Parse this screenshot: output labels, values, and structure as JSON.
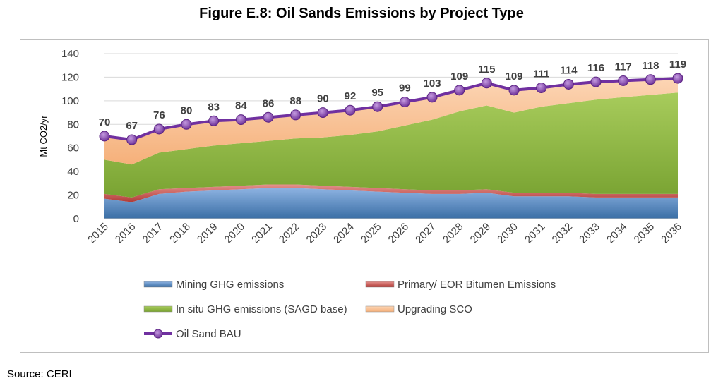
{
  "chart_data": {
    "type": "area",
    "title": "Figure E.8: Oil Sands Emissions by Project Type",
    "ylabel": "Mt CO2/yr",
    "xlabel": "",
    "ylim": [
      0,
      140
    ],
    "yticks": [
      0,
      20,
      40,
      60,
      80,
      100,
      120,
      140
    ],
    "grid": true,
    "legend": "bottom",
    "categories": [
      "2015",
      "2016",
      "2017",
      "2018",
      "2019",
      "2020",
      "2021",
      "2022",
      "2023",
      "2024",
      "2025",
      "2026",
      "2027",
      "2028",
      "2029",
      "2030",
      "2031",
      "2032",
      "2033",
      "2034",
      "2035",
      "2036"
    ],
    "series": [
      {
        "name": "Mining GHG emissions",
        "kind": "stacked-area",
        "color": "#4f81bd",
        "values": [
          17,
          14,
          21,
          23,
          24,
          25,
          26,
          26,
          25,
          24,
          23,
          22,
          21,
          21,
          22,
          19,
          19,
          19,
          18,
          18,
          18,
          18
        ]
      },
      {
        "name": "Primary/ EOR Bitumen Emissions",
        "kind": "stacked-area",
        "color": "#c0504d",
        "values": [
          4,
          4,
          4,
          3,
          3,
          3,
          3,
          3,
          3,
          3,
          3,
          3,
          3,
          3,
          3,
          3,
          3,
          3,
          3,
          3,
          3,
          3
        ]
      },
      {
        "name": "In situ GHG emissions (SAGD base)",
        "kind": "stacked-area",
        "color": "#9bbb59",
        "values": [
          29,
          28,
          31,
          33,
          35,
          36,
          37,
          39,
          41,
          44,
          48,
          54,
          60,
          67,
          71,
          68,
          73,
          76,
          80,
          82,
          84,
          86
        ]
      },
      {
        "name": "Upgrading SCO",
        "kind": "stacked-area",
        "color": "#fac090",
        "values": [
          20,
          21,
          20,
          21,
          21,
          20,
          20,
          20,
          21,
          21,
          21,
          20,
          19,
          18,
          19,
          19,
          16,
          16,
          15,
          14,
          13,
          12
        ]
      },
      {
        "name": "Oil Sand BAU",
        "kind": "line",
        "color": "#7030a0",
        "values": [
          70,
          67,
          76,
          80,
          83,
          84,
          86,
          88,
          90,
          92,
          95,
          99,
          103,
          109,
          115,
          109,
          111,
          114,
          116,
          117,
          118,
          119
        ]
      }
    ],
    "source": "Source: CERI"
  }
}
